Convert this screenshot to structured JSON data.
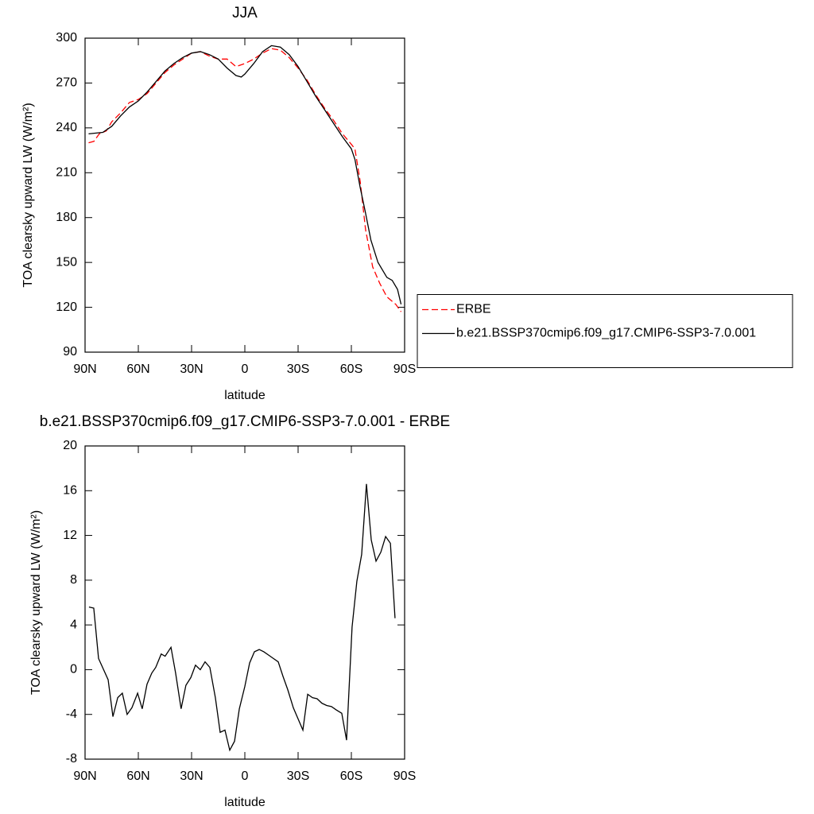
{
  "chart_data": [
    {
      "type": "line",
      "title": "JJA",
      "x_label": "latitude",
      "y_label": "TOA clearsky upward LW (W/m²)",
      "xlim": [
        90,
        -90
      ],
      "ylim": [
        90,
        300
      ],
      "xticks": [
        {
          "value": 90,
          "label": "90N"
        },
        {
          "value": 60,
          "label": "60N"
        },
        {
          "value": 30,
          "label": "30N"
        },
        {
          "value": 0,
          "label": "0"
        },
        {
          "value": -30,
          "label": "30S"
        },
        {
          "value": -60,
          "label": "60S"
        },
        {
          "value": -90,
          "label": "90S"
        }
      ],
      "yticks": [
        90,
        120,
        150,
        180,
        210,
        240,
        270,
        300
      ],
      "legend": "right",
      "series": [
        {
          "name": "ERBE",
          "color": "#ff0000",
          "dashed": true,
          "x": [
            88,
            85,
            82,
            78,
            75,
            70,
            65,
            60,
            55,
            50,
            45,
            40,
            35,
            30,
            25,
            20,
            15,
            10,
            5,
            0,
            -5,
            -10,
            -15,
            -20,
            -25,
            -30,
            -35,
            -40,
            -45,
            -50,
            -55,
            -60,
            -62,
            -65,
            -68,
            -72,
            -76,
            -80,
            -85,
            -88
          ],
          "values": [
            230,
            231,
            236,
            238,
            244,
            250,
            257,
            259,
            263,
            270,
            277,
            282,
            286,
            290,
            291,
            288,
            286,
            286,
            281,
            283,
            286,
            290,
            293,
            292,
            287,
            280,
            272,
            262,
            253,
            245,
            236,
            229,
            226,
            204,
            172,
            147,
            136,
            127,
            122,
            117
          ]
        },
        {
          "name": "b.e21.BSSP370cmip6.f09_g17.CMIP6-SSP3-7.0.001",
          "color": "#000000",
          "dashed": false,
          "x": [
            88,
            80,
            75,
            70,
            65,
            60,
            55,
            50,
            45,
            40,
            35,
            30,
            25,
            20,
            15,
            10,
            5,
            2,
            0,
            -5,
            -10,
            -15,
            -20,
            -25,
            -30,
            -35,
            -40,
            -45,
            -50,
            -55,
            -60,
            -62,
            -65,
            -68,
            -71,
            -75,
            -80,
            -83,
            -86,
            -88
          ],
          "values": [
            236,
            237,
            241,
            248,
            254,
            258,
            264,
            271,
            278,
            283,
            287,
            290,
            291,
            289,
            286,
            280,
            275,
            274,
            276,
            283,
            291,
            295,
            294,
            289,
            281,
            271,
            261,
            252,
            243,
            234,
            226,
            219,
            200,
            183,
            165,
            150,
            140,
            138,
            132,
            122
          ]
        }
      ]
    },
    {
      "type": "line",
      "title": "b.e21.BSSP370cmip6.f09_g17.CMIP6-SSP3-7.0.001 - ERBE",
      "x_label": "latitude",
      "y_label": "TOA clearsky upward LW (W/m²)",
      "xlim": [
        90,
        -90
      ],
      "ylim": [
        -8,
        20
      ],
      "xticks": [
        {
          "value": 90,
          "label": "90N"
        },
        {
          "value": 60,
          "label": "60N"
        },
        {
          "value": 30,
          "label": "30N"
        },
        {
          "value": 0,
          "label": "0"
        },
        {
          "value": -30,
          "label": "30S"
        },
        {
          "value": -60,
          "label": "60S"
        },
        {
          "value": -90,
          "label": "90S"
        }
      ],
      "yticks": [
        -8,
        -4,
        0,
        4,
        8,
        12,
        16,
        20
      ],
      "series": [
        {
          "color": "#000000",
          "dashed": false,
          "x": [
            87.8,
            85.1,
            82.4,
            77.0,
            74.3,
            71.6,
            69.0,
            66.3,
            63.6,
            60.4,
            57.8,
            55.1,
            52.4,
            50.2,
            47.1,
            44.9,
            41.6,
            39.0,
            35.9,
            33.2,
            30.4,
            27.8,
            25.1,
            22.4,
            19.7,
            16.6,
            13.9,
            11.2,
            8.5,
            5.8,
            3.1,
            0.0,
            -2.7,
            -5.4,
            -8.1,
            -10.7,
            -13.4,
            -16.1,
            -18.8,
            -21.5,
            -24.2,
            -27.3,
            -30.0,
            -32.7,
            -35.4,
            -38.1,
            -40.7,
            -43.4,
            -46.1,
            -48.8,
            -51.5,
            -54.6,
            -57.3,
            -60.4,
            -63.1,
            -65.8,
            -68.5,
            -71.2,
            -73.9,
            -76.6,
            -79.3,
            -82.0,
            -84.6
          ],
          "values": [
            5.6,
            5.5,
            1.0,
            -0.9,
            -4.2,
            -2.5,
            -2.1,
            -4.0,
            -3.4,
            -2.1,
            -3.5,
            -1.3,
            -0.3,
            0.2,
            1.4,
            1.2,
            2.0,
            -0.3,
            -3.5,
            -1.4,
            -0.7,
            0.4,
            0.0,
            0.7,
            0.2,
            -2.5,
            -5.6,
            -5.4,
            -7.2,
            -6.4,
            -3.5,
            -1.5,
            0.6,
            1.6,
            1.8,
            1.6,
            1.3,
            1.0,
            0.7,
            -0.6,
            -1.8,
            -3.4,
            -4.4,
            -5.4,
            -2.2,
            -2.5,
            -2.6,
            -3.0,
            -3.2,
            -3.3,
            -3.6,
            -3.9,
            -6.3,
            3.8,
            7.9,
            10.3,
            16.6,
            11.6,
            9.7,
            10.5,
            11.9,
            11.3,
            4.6
          ]
        }
      ]
    }
  ]
}
